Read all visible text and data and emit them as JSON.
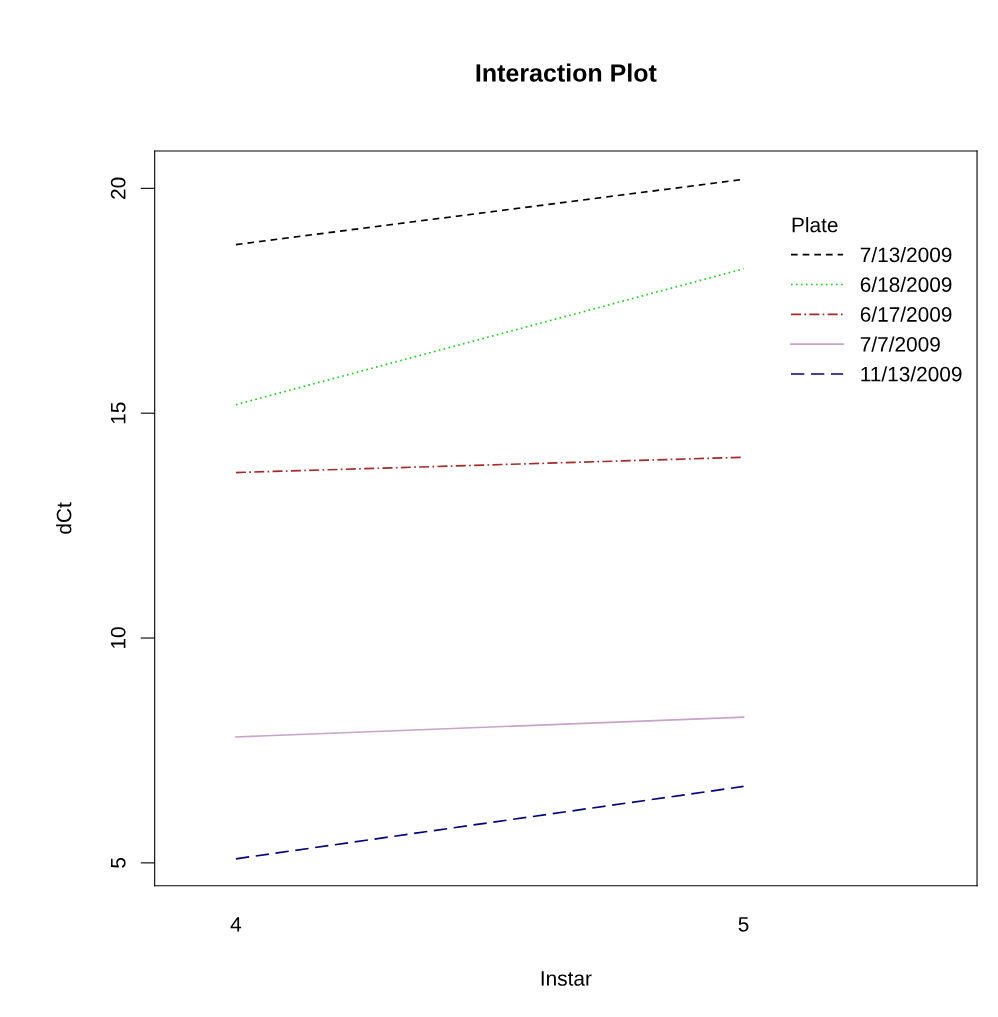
{
  "chart_data": {
    "type": "line",
    "title": "Interaction Plot",
    "xlabel": "Instar",
    "ylabel": "dCt",
    "x": [
      4,
      5
    ],
    "xlim": [
      3.84,
      5.46
    ],
    "xticks": [
      4,
      5
    ],
    "ylim": [
      4.49,
      20.83
    ],
    "yticks": [
      5,
      10,
      15,
      20
    ],
    "legend": "top right",
    "legend_title": "Plate",
    "grid": false,
    "series": [
      {
        "name": "7/13/2009",
        "color": "#000000",
        "line_style": "dashed",
        "values": [
          18.75,
          20.2
        ]
      },
      {
        "name": "6/18/2009",
        "color": "#22cc22",
        "line_style": "dotted",
        "values": [
          15.19,
          18.21
        ]
      },
      {
        "name": "6/17/2009",
        "color": "#a52a2a",
        "line_style": "dashdot",
        "values": [
          13.68,
          14.02
        ]
      },
      {
        "name": "7/7/2009",
        "color": "#c8a2c8",
        "line_style": "solid",
        "values": [
          7.8,
          8.24
        ]
      },
      {
        "name": "11/13/2009",
        "color": "#000080",
        "line_style": "longdash",
        "values": [
          5.09,
          6.7
        ]
      }
    ]
  }
}
